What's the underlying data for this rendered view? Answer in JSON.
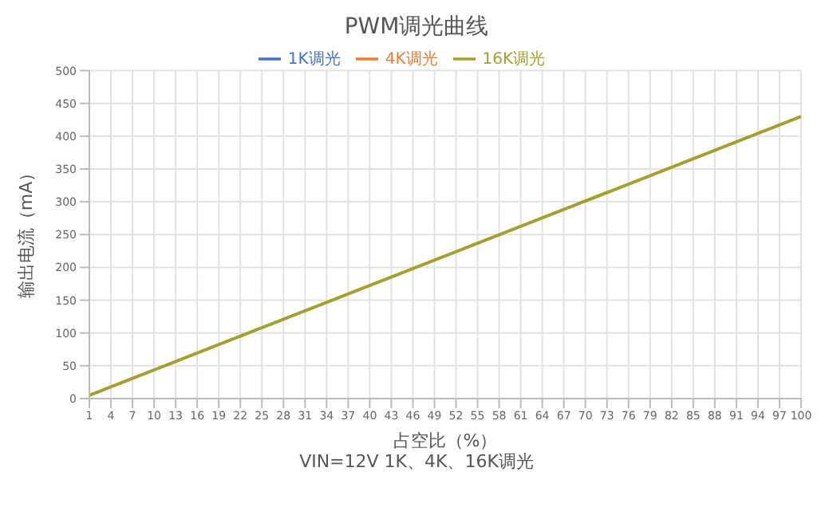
{
  "chart_data": {
    "type": "line",
    "title": "PWM调光曲线",
    "xlabel": "占空比（%）",
    "ylabel": "输出电流（mA）",
    "annotations": [
      "VIN=12V 1K、4K、16K调光"
    ],
    "x": [
      1,
      100
    ],
    "series": [
      {
        "name": "1K调光",
        "color": "#4472c4",
        "values": [
          null,
          null
        ]
      },
      {
        "name": "4K调光",
        "color": "#ed7d31",
        "values": [
          null,
          null
        ]
      },
      {
        "name": "16K调光",
        "color": "#a5a02e",
        "values": [
          5,
          430
        ]
      }
    ],
    "xlim": [
      1,
      100
    ],
    "xticks": [
      1,
      4,
      7,
      10,
      13,
      16,
      19,
      22,
      25,
      28,
      31,
      34,
      37,
      40,
      43,
      46,
      49,
      52,
      55,
      58,
      61,
      64,
      67,
      70,
      73,
      76,
      79,
      82,
      85,
      88,
      91,
      94,
      97,
      100
    ],
    "ylim": [
      0,
      500
    ],
    "yticks": [
      0,
      50,
      100,
      150,
      200,
      250,
      300,
      350,
      400,
      450,
      500
    ],
    "grid": true,
    "legend": "top",
    "marker": "none",
    "line_style": "solid"
  }
}
